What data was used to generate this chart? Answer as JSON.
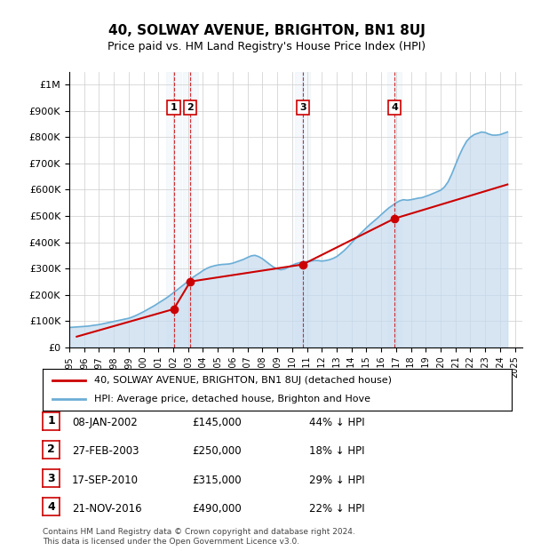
{
  "title": "40, SOLWAY AVENUE, BRIGHTON, BN1 8UJ",
  "subtitle": "Price paid vs. HM Land Registry's House Price Index (HPI)",
  "ylabel_ticks": [
    "£0",
    "£100K",
    "£200K",
    "£300K",
    "£400K",
    "£500K",
    "£600K",
    "£700K",
    "£800K",
    "£900K",
    "£1M"
  ],
  "ytick_values": [
    0,
    100000,
    200000,
    300000,
    400000,
    500000,
    600000,
    700000,
    800000,
    900000,
    1000000
  ],
  "ylim": [
    0,
    1050000
  ],
  "xlim_start": 1995.0,
  "xlim_end": 2025.5,
  "transactions": [
    {
      "label": "1",
      "date": "08-JAN-2002",
      "year": 2002.03,
      "price": 145000,
      "pct": "44% ↓ HPI"
    },
    {
      "label": "2",
      "date": "27-FEB-2003",
      "year": 2003.15,
      "price": 250000,
      "pct": "18% ↓ HPI"
    },
    {
      "label": "3",
      "date": "17-SEP-2010",
      "year": 2010.71,
      "price": 315000,
      "pct": "29% ↓ HPI"
    },
    {
      "label": "4",
      "date": "21-NOV-2016",
      "year": 2016.89,
      "price": 490000,
      "pct": "22% ↓ HPI"
    }
  ],
  "hpi_color": "#6baed6",
  "hpi_fill_color": "#c6dbef",
  "price_color": "#cc0000",
  "vline_color": "#cc0000",
  "marker_color": "#cc0000",
  "legend_address": "40, SOLWAY AVENUE, BRIGHTON, BN1 8UJ (detached house)",
  "legend_hpi": "HPI: Average price, detached house, Brighton and Hove",
  "footer": "Contains HM Land Registry data © Crown copyright and database right 2024.\nThis data is licensed under the Open Government Licence v3.0.",
  "background_color": "#ffffff",
  "hpi_data_years": [
    1995.0,
    1995.25,
    1995.5,
    1995.75,
    1996.0,
    1996.25,
    1996.5,
    1996.75,
    1997.0,
    1997.25,
    1997.5,
    1997.75,
    1998.0,
    1998.25,
    1998.5,
    1998.75,
    1999.0,
    1999.25,
    1999.5,
    1999.75,
    2000.0,
    2000.25,
    2000.5,
    2000.75,
    2001.0,
    2001.25,
    2001.5,
    2001.75,
    2002.0,
    2002.25,
    2002.5,
    2002.75,
    2003.0,
    2003.25,
    2003.5,
    2003.75,
    2004.0,
    2004.25,
    2004.5,
    2004.75,
    2005.0,
    2005.25,
    2005.5,
    2005.75,
    2006.0,
    2006.25,
    2006.5,
    2006.75,
    2007.0,
    2007.25,
    2007.5,
    2007.75,
    2008.0,
    2008.25,
    2008.5,
    2008.75,
    2009.0,
    2009.25,
    2009.5,
    2009.75,
    2010.0,
    2010.25,
    2010.5,
    2010.75,
    2011.0,
    2011.25,
    2011.5,
    2011.75,
    2012.0,
    2012.25,
    2012.5,
    2012.75,
    2013.0,
    2013.25,
    2013.5,
    2013.75,
    2014.0,
    2014.25,
    2014.5,
    2014.75,
    2015.0,
    2015.25,
    2015.5,
    2015.75,
    2016.0,
    2016.25,
    2016.5,
    2016.75,
    2017.0,
    2017.25,
    2017.5,
    2017.75,
    2018.0,
    2018.25,
    2018.5,
    2018.75,
    2019.0,
    2019.25,
    2019.5,
    2019.75,
    2020.0,
    2020.25,
    2020.5,
    2020.75,
    2021.0,
    2021.25,
    2021.5,
    2021.75,
    2022.0,
    2022.25,
    2022.5,
    2022.75,
    2023.0,
    2023.25,
    2023.5,
    2023.75,
    2024.0,
    2024.25,
    2024.5
  ],
  "hpi_data_values": [
    75000,
    76000,
    77000,
    78000,
    79000,
    80000,
    82000,
    84000,
    86000,
    89000,
    92000,
    95000,
    98000,
    101000,
    104000,
    107000,
    110000,
    115000,
    121000,
    128000,
    135000,
    143000,
    151000,
    159000,
    168000,
    177000,
    186000,
    196000,
    207000,
    218000,
    229000,
    240000,
    252000,
    263000,
    273000,
    282000,
    292000,
    300000,
    306000,
    310000,
    313000,
    315000,
    316000,
    317000,
    320000,
    325000,
    330000,
    335000,
    342000,
    348000,
    350000,
    345000,
    337000,
    326000,
    315000,
    305000,
    298000,
    295000,
    298000,
    305000,
    312000,
    318000,
    322000,
    325000,
    326000,
    328000,
    330000,
    330000,
    328000,
    330000,
    333000,
    338000,
    345000,
    356000,
    368000,
    382000,
    397000,
    413000,
    428000,
    441000,
    455000,
    468000,
    480000,
    492000,
    505000,
    518000,
    530000,
    540000,
    550000,
    558000,
    562000,
    560000,
    562000,
    565000,
    568000,
    570000,
    575000,
    580000,
    586000,
    592000,
    598000,
    610000,
    630000,
    660000,
    695000,
    730000,
    760000,
    785000,
    800000,
    810000,
    815000,
    820000,
    818000,
    812000,
    808000,
    808000,
    810000,
    815000,
    820000
  ],
  "price_data_years": [
    1995.5,
    2002.03,
    2003.15,
    2010.71,
    2016.89,
    2024.5
  ],
  "price_data_values": [
    40000,
    145000,
    250000,
    315000,
    490000,
    620000
  ]
}
